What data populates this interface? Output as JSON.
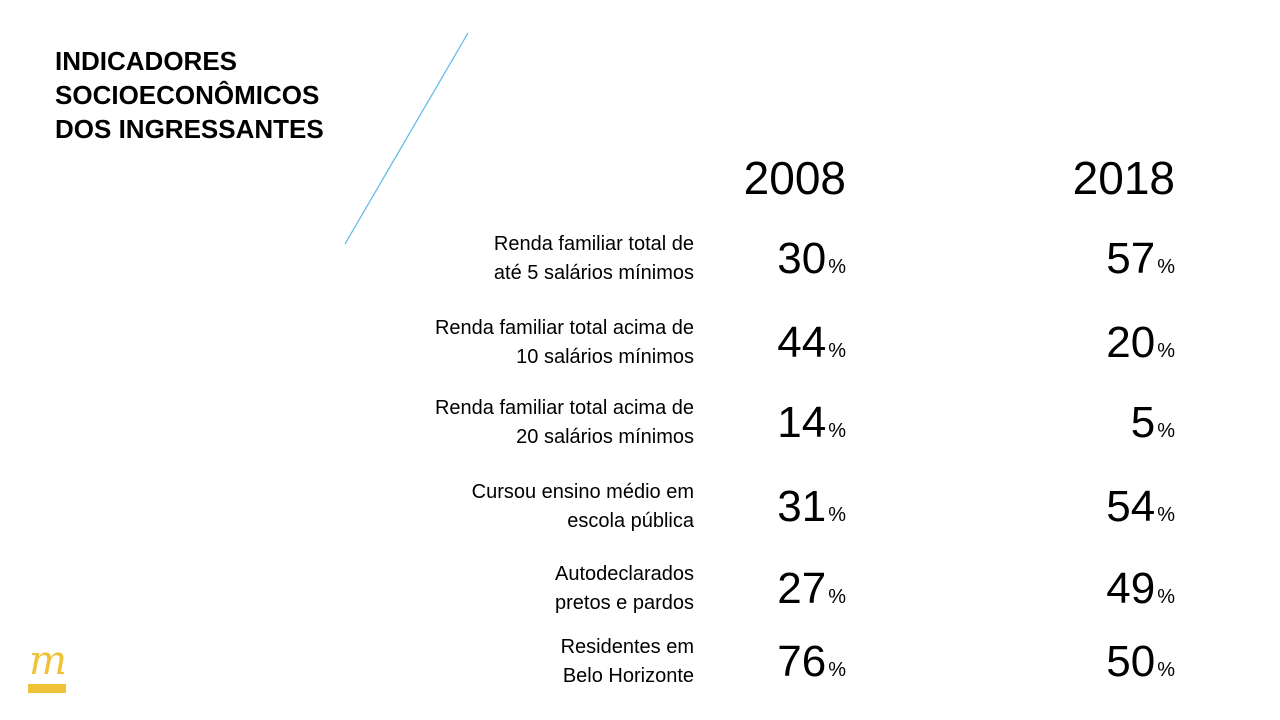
{
  "title": {
    "line1": "INDICADORES",
    "line2": "SOCIOECONÔMICOS",
    "line3": "DOS INGRESSANTES"
  },
  "years": [
    "2008",
    "2018"
  ],
  "percent_sign": "%",
  "rows": [
    {
      "label_line1": "Renda familiar total de",
      "label_line2": "até 5 salários mínimos",
      "v2008": "30",
      "v2018": "57"
    },
    {
      "label_line1": "Renda familiar total acima de",
      "label_line2": "10 salários mínimos",
      "v2008": "44",
      "v2018": "20"
    },
    {
      "label_line1": "Renda familiar total acima de",
      "label_line2": "20 salários mínimos",
      "v2008": "14",
      "v2018": "5"
    },
    {
      "label_line1": "Cursou ensino médio em",
      "label_line2": "escola pública",
      "v2008": "31",
      "v2018": "54"
    },
    {
      "label_line1": "Autodeclarados",
      "label_line2": "pretos e pardos",
      "v2008": "27",
      "v2018": "49"
    },
    {
      "label_line1": "Residentes em",
      "label_line2": "Belo Horizonte",
      "v2008": "76",
      "v2018": "50"
    }
  ],
  "logo": {
    "glyph": "m"
  },
  "colors": {
    "accent_line": "#5bb8e6",
    "logo": "#f0c23a",
    "text": "#000000"
  }
}
